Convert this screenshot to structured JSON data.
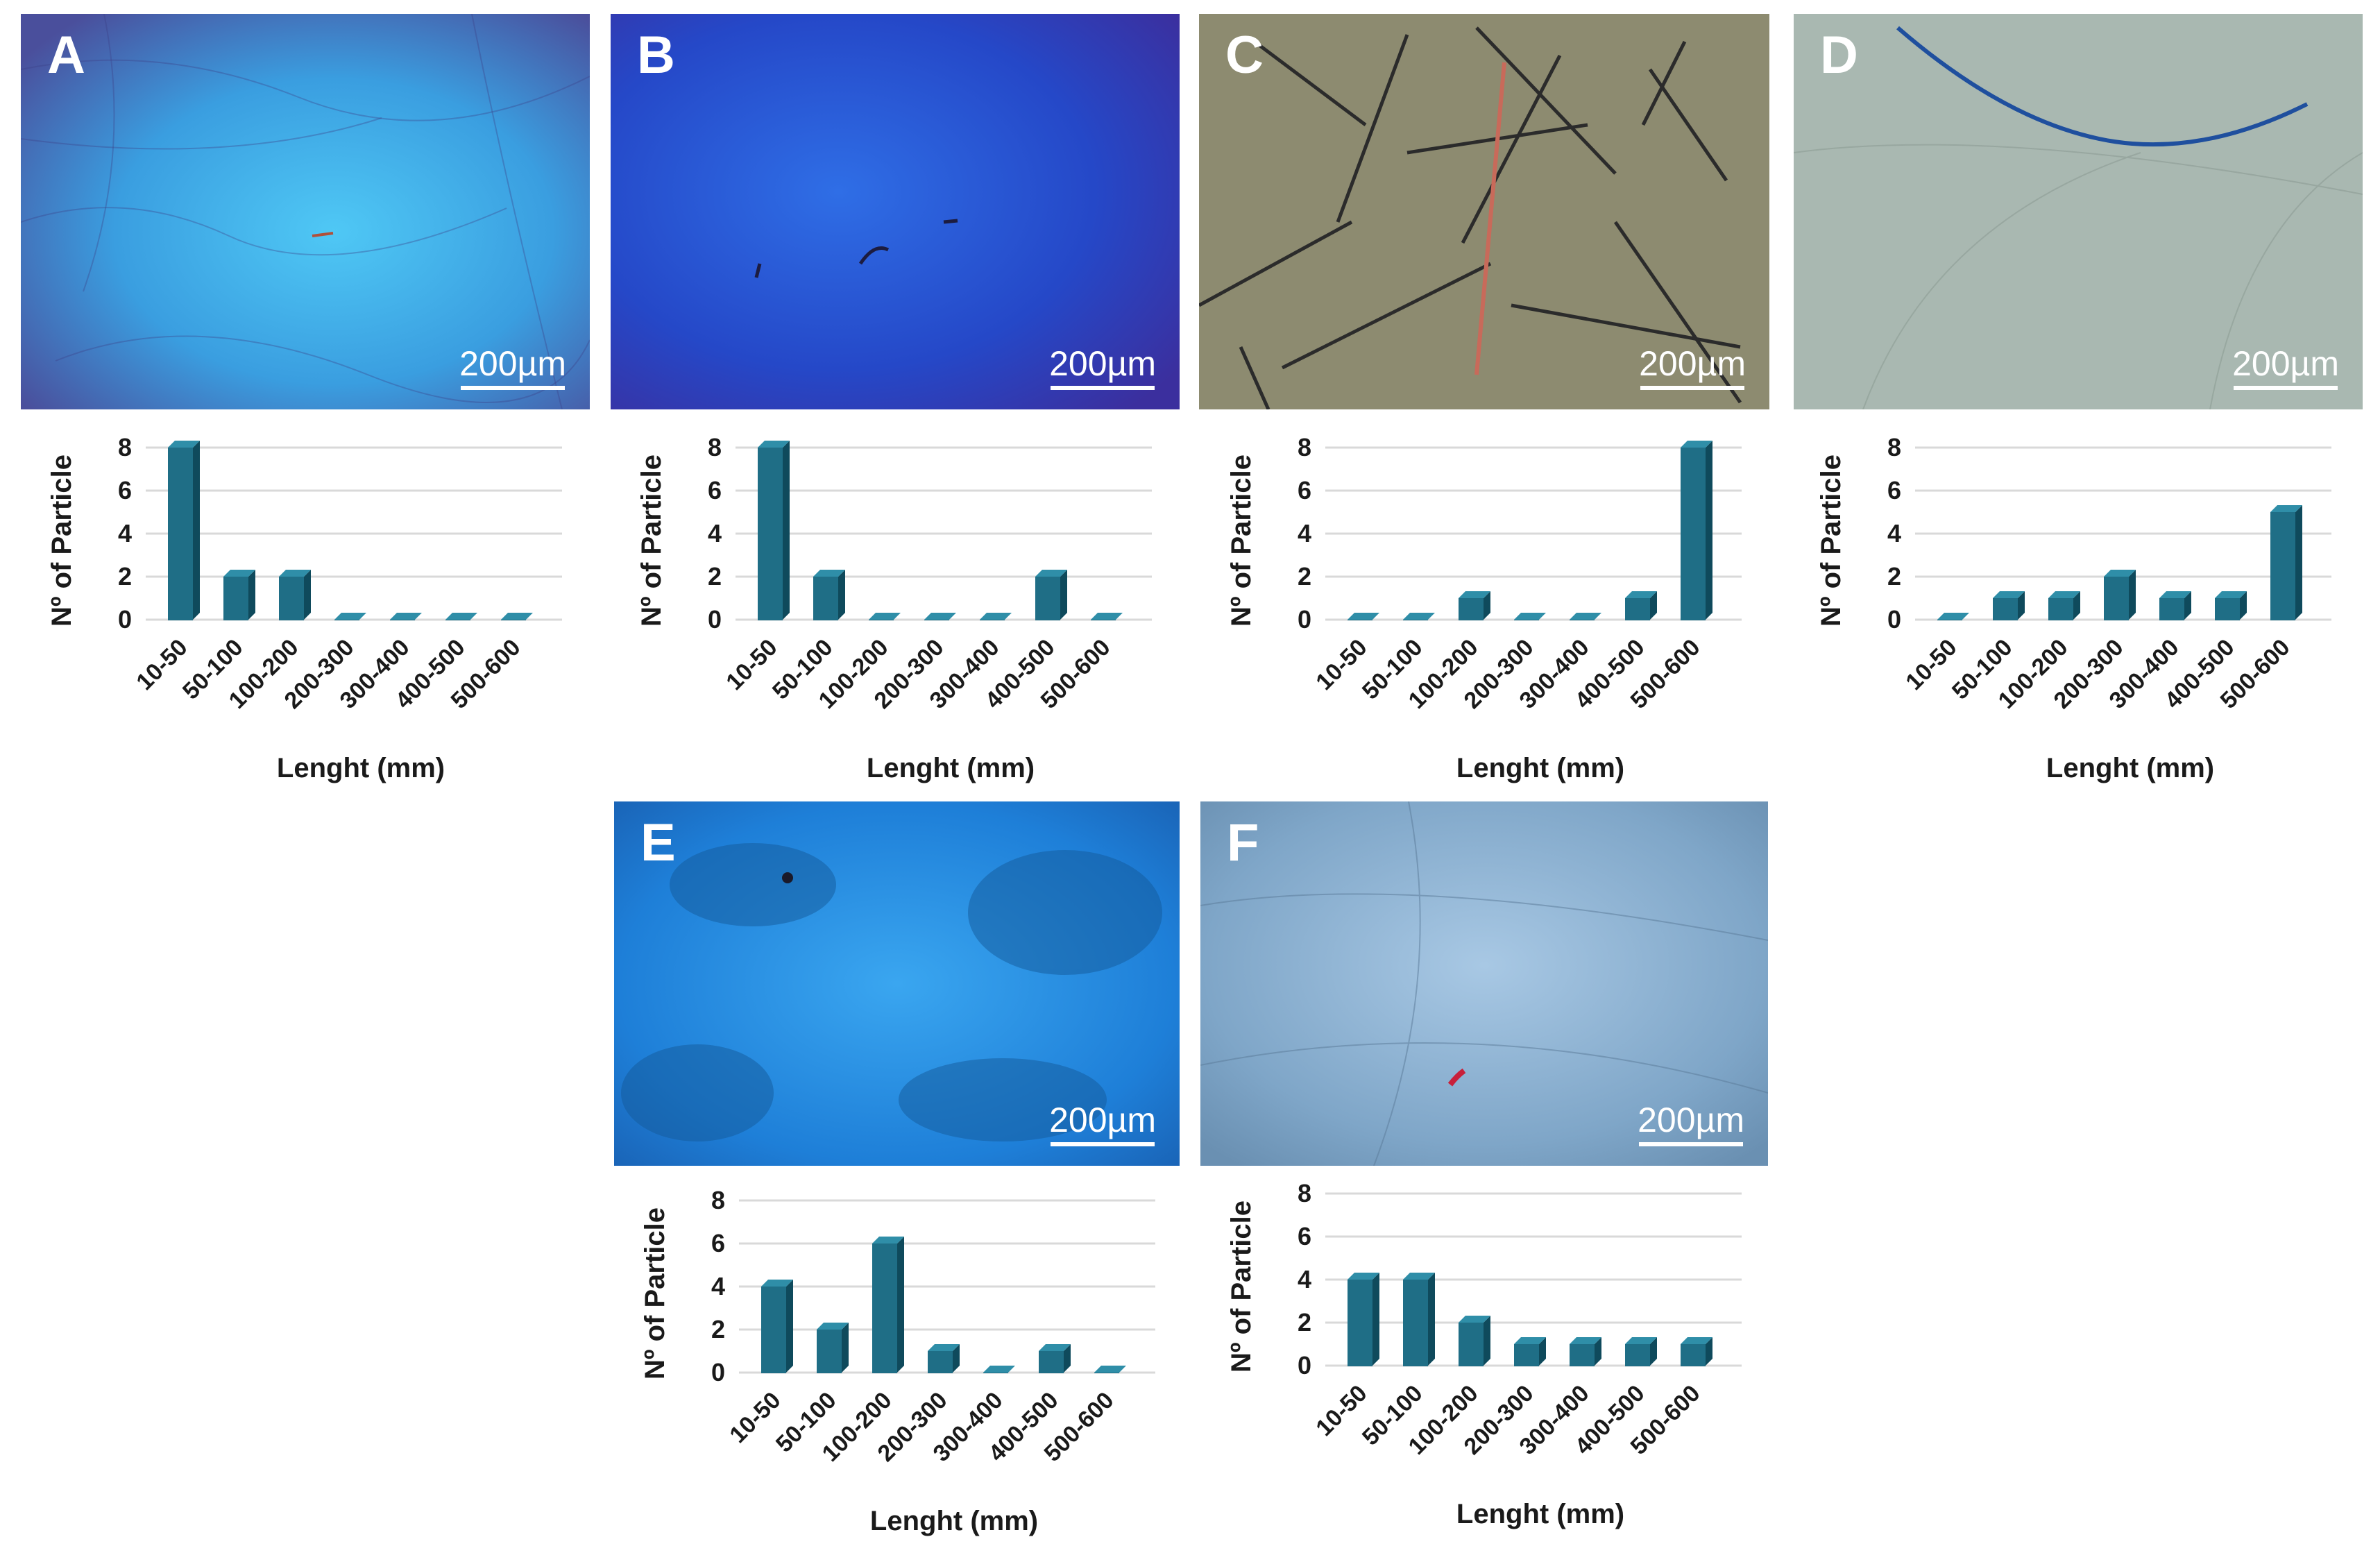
{
  "panels": [
    {
      "label": "A",
      "scale": "200µm",
      "tone": "blue_fluor"
    },
    {
      "label": "B",
      "scale": "200µm",
      "tone": "deep_blue"
    },
    {
      "label": "C",
      "scale": "200µm",
      "tone": "brightfield_olive"
    },
    {
      "label": "D",
      "scale": "200µm",
      "tone": "brightfield_grey"
    },
    {
      "label": "E",
      "scale": "200µm",
      "tone": "cyan_fluor"
    },
    {
      "label": "F",
      "scale": "200µm",
      "tone": "blue_grey"
    }
  ],
  "colors": {
    "bar": "#1f6e86",
    "bar_top": "#2f8ea8",
    "bar_side": "#0f4a5c",
    "grid": "#d9d9d9"
  },
  "chart_data": [
    {
      "panel": "A",
      "type": "bar",
      "categories": [
        "10-50",
        "50-100",
        "100-200",
        "200-300",
        "300-400",
        "400-500",
        "500-600"
      ],
      "values": [
        8,
        2,
        2,
        0,
        0,
        0,
        0
      ],
      "xlabel": "Lenght (mm)",
      "ylabel": "Nº of Particle",
      "ylim": [
        0,
        8
      ],
      "yticks": [
        0,
        2,
        4,
        6,
        8
      ],
      "grid": true
    },
    {
      "panel": "B",
      "type": "bar",
      "categories": [
        "10-50",
        "50-100",
        "100-200",
        "200-300",
        "300-400",
        "400-500",
        "500-600"
      ],
      "values": [
        8,
        2,
        0,
        0,
        0,
        2,
        0
      ],
      "xlabel": "Lenght (mm)",
      "ylabel": "Nº of Particle",
      "ylim": [
        0,
        8
      ],
      "yticks": [
        0,
        2,
        4,
        6,
        8
      ],
      "grid": true
    },
    {
      "panel": "C",
      "type": "bar",
      "categories": [
        "10-50",
        "50-100",
        "100-200",
        "200-300",
        "300-400",
        "400-500",
        "500-600"
      ],
      "values": [
        0,
        0,
        1,
        0,
        0,
        1,
        8
      ],
      "xlabel": "Lenght (mm)",
      "ylabel": "Nº of Particle",
      "ylim": [
        0,
        8
      ],
      "yticks": [
        0,
        2,
        4,
        6,
        8
      ],
      "grid": true
    },
    {
      "panel": "D",
      "type": "bar",
      "categories": [
        "10-50",
        "50-100",
        "100-200",
        "200-300",
        "300-400",
        "400-500",
        "500-600"
      ],
      "values": [
        0,
        1,
        1,
        2,
        1,
        1,
        5
      ],
      "xlabel": "Lenght (mm)",
      "ylabel": "Nº of Particle",
      "ylim": [
        0,
        8
      ],
      "yticks": [
        0,
        2,
        4,
        6,
        8
      ],
      "grid": true
    },
    {
      "panel": "E",
      "type": "bar",
      "categories": [
        "10-50",
        "50-100",
        "100-200",
        "200-300",
        "300-400",
        "400-500",
        "500-600"
      ],
      "values": [
        4,
        2,
        6,
        1,
        0,
        1,
        0
      ],
      "xlabel": "Lenght (mm)",
      "ylabel": "Nº of Particle",
      "ylim": [
        0,
        8
      ],
      "yticks": [
        0,
        2,
        4,
        6,
        8
      ],
      "grid": true
    },
    {
      "panel": "F",
      "type": "bar",
      "categories": [
        "10-50",
        "50-100",
        "100-200",
        "200-300",
        "300-400",
        "400-500",
        "500-600"
      ],
      "values": [
        4,
        4,
        2,
        1,
        1,
        1,
        1
      ],
      "xlabel": "Lenght (mm)",
      "ylabel": "Nº of Particle",
      "ylim": [
        0,
        8
      ],
      "yticks": [
        0,
        2,
        4,
        6,
        8
      ],
      "grid": true
    }
  ]
}
